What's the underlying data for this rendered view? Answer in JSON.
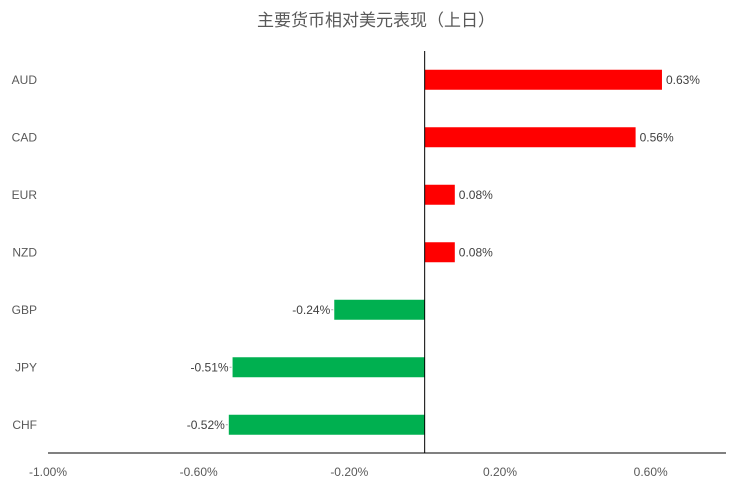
{
  "chart_data": {
    "type": "bar",
    "orientation": "horizontal",
    "title": "主要货币相对美元表现（上日）",
    "categories": [
      "AUD",
      "CAD",
      "EUR",
      "NZD",
      "GBP",
      "JPY",
      "CHF"
    ],
    "values": [
      0.63,
      0.56,
      0.08,
      0.08,
      -0.24,
      -0.51,
      -0.52
    ],
    "data_labels": [
      "0.63%",
      "0.56%",
      "0.08%",
      "0.08%",
      "-0.24%",
      "-0.51%",
      "-0.52%"
    ],
    "xlim": [
      -1.0,
      0.8
    ],
    "x_ticks": [
      -1.0,
      -0.6,
      -0.2,
      0.2,
      0.6
    ],
    "x_tick_labels": [
      "-1.00%",
      "-0.60%",
      "-0.20%",
      "0.20%",
      "0.60%"
    ],
    "xlabel": "",
    "ylabel": "",
    "grid": false,
    "legend": "none",
    "colors": {
      "positive": "#ff0000",
      "negative": "#00b050",
      "axis": "#000000",
      "text": "#595959"
    }
  }
}
